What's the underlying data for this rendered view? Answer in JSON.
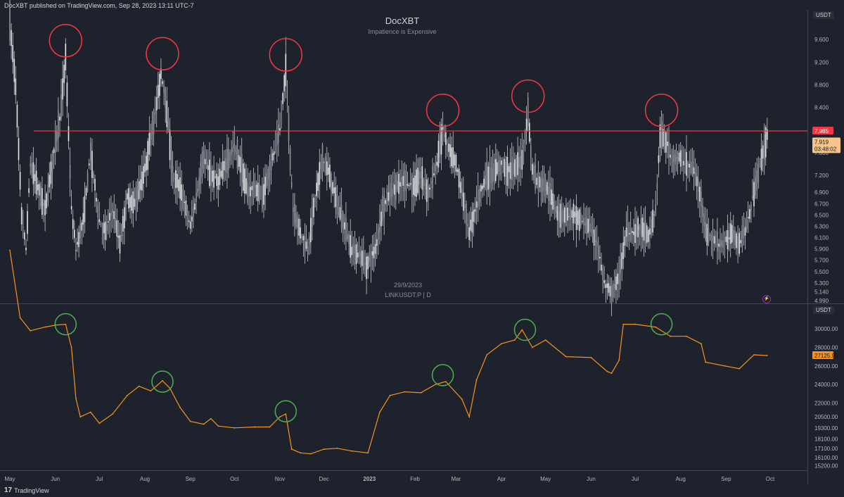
{
  "header": "DocXBT published on TradingView.com, Sep 28, 2023 13:11 UTC-7",
  "footer_brand": "TradingView",
  "chart_title": "DocXBT",
  "chart_subtitle": "Impatience is Expensive",
  "watermark_date": "29/9/2023",
  "watermark_symbol": "LINKUSDT.P | D",
  "colors": {
    "background": "#1e222d",
    "candles": "#c8c9ce",
    "resistance_line": "#f23645",
    "red_circle": "#f23645",
    "green_circle": "#4caf50",
    "btc_line": "#f7931a"
  },
  "chart_data": [
    {
      "type": "candlestick",
      "currency_label": "USDT",
      "y_ticks": [
        "9.600",
        "9.200",
        "8.800",
        "8.400",
        "7.600",
        "7.200",
        "6.900",
        "6.700",
        "6.500",
        "6.300",
        "6.100",
        "5.900",
        "5.700",
        "5.500",
        "5.300",
        "5.140",
        "4.990"
      ],
      "ylim": [
        4.95,
        10.1
      ],
      "x_ticks": [
        "May",
        "Jun",
        "Jul",
        "Aug",
        "Sep",
        "Oct",
        "Nov",
        "Dec",
        "2023",
        "Feb",
        "Mar",
        "Apr",
        "May",
        "Jun",
        "Jul",
        "Aug",
        "Sep",
        "Oct"
      ],
      "resistance_level": 7.985,
      "resistance_label": "7.985",
      "last_price_label": "7.919",
      "countdown_label": "03:48:02",
      "close_path": [
        [
          "2022-05-01",
          9.9
        ],
        [
          "2022-05-05",
          8.8
        ],
        [
          "2022-05-09",
          6.5
        ],
        [
          "2022-05-12",
          5.9
        ],
        [
          "2022-05-15",
          7.4
        ],
        [
          "2022-05-20",
          7.0
        ],
        [
          "2022-05-25",
          6.6
        ],
        [
          "2022-05-31",
          7.6
        ],
        [
          "2022-06-05",
          8.4
        ],
        [
          "2022-06-08",
          9.3
        ],
        [
          "2022-06-12",
          6.6
        ],
        [
          "2022-06-15",
          5.9
        ],
        [
          "2022-06-20",
          6.4
        ],
        [
          "2022-06-25",
          7.6
        ],
        [
          "2022-07-01",
          6.4
        ],
        [
          "2022-07-05",
          6.2
        ],
        [
          "2022-07-10",
          6.6
        ],
        [
          "2022-07-15",
          6.0
        ],
        [
          "2022-07-20",
          6.8
        ],
        [
          "2022-07-25",
          6.7
        ],
        [
          "2022-08-01",
          7.3
        ],
        [
          "2022-08-08",
          8.3
        ],
        [
          "2022-08-12",
          9.0
        ],
        [
          "2022-08-15",
          8.6
        ],
        [
          "2022-08-20",
          7.2
        ],
        [
          "2022-08-25",
          7.0
        ],
        [
          "2022-09-01",
          6.3
        ],
        [
          "2022-09-05",
          6.8
        ],
        [
          "2022-09-10",
          7.5
        ],
        [
          "2022-09-15",
          7.2
        ],
        [
          "2022-09-20",
          7.1
        ],
        [
          "2022-09-25",
          7.4
        ],
        [
          "2022-10-01",
          7.7
        ],
        [
          "2022-10-05",
          7.4
        ],
        [
          "2022-10-10",
          6.9
        ],
        [
          "2022-10-15",
          7.0
        ],
        [
          "2022-10-20",
          6.8
        ],
        [
          "2022-10-25",
          7.3
        ],
        [
          "2022-11-01",
          8.0
        ],
        [
          "2022-11-05",
          9.1
        ],
        [
          "2022-11-08",
          7.5
        ],
        [
          "2022-11-10",
          6.6
        ],
        [
          "2022-11-15",
          6.2
        ],
        [
          "2022-11-20",
          5.9
        ],
        [
          "2022-11-25",
          6.8
        ],
        [
          "2022-11-30",
          7.5
        ],
        [
          "2022-12-05",
          7.2
        ],
        [
          "2022-12-10",
          6.7
        ],
        [
          "2022-12-15",
          6.3
        ],
        [
          "2022-12-20",
          5.9
        ],
        [
          "2022-12-25",
          5.8
        ],
        [
          "2022-12-30",
          5.6
        ],
        [
          "2023-01-05",
          5.9
        ],
        [
          "2023-01-10",
          6.6
        ],
        [
          "2023-01-15",
          6.9
        ],
        [
          "2023-01-20",
          7.0
        ],
        [
          "2023-01-25",
          7.1
        ],
        [
          "2023-01-31",
          7.0
        ],
        [
          "2023-02-05",
          7.2
        ],
        [
          "2023-02-10",
          6.9
        ],
        [
          "2023-02-15",
          7.3
        ],
        [
          "2023-02-20",
          8.0
        ],
        [
          "2023-02-25",
          7.6
        ],
        [
          "2023-03-01",
          7.4
        ],
        [
          "2023-03-05",
          6.9
        ],
        [
          "2023-03-10",
          6.2
        ],
        [
          "2023-03-15",
          6.7
        ],
        [
          "2023-03-20",
          7.1
        ],
        [
          "2023-03-25",
          7.2
        ],
        [
          "2023-04-01",
          7.4
        ],
        [
          "2023-04-05",
          7.3
        ],
        [
          "2023-04-10",
          7.3
        ],
        [
          "2023-04-15",
          7.5
        ],
        [
          "2023-04-19",
          8.3
        ],
        [
          "2023-04-22",
          7.3
        ],
        [
          "2023-04-25",
          7.1
        ],
        [
          "2023-05-01",
          7.0
        ],
        [
          "2023-05-05",
          6.8
        ],
        [
          "2023-05-10",
          6.5
        ],
        [
          "2023-05-15",
          6.5
        ],
        [
          "2023-05-20",
          6.5
        ],
        [
          "2023-05-25",
          6.4
        ],
        [
          "2023-05-31",
          6.3
        ],
        [
          "2023-06-05",
          6.0
        ],
        [
          "2023-06-10",
          5.3
        ],
        [
          "2023-06-15",
          5.1
        ],
        [
          "2023-06-20",
          5.4
        ],
        [
          "2023-06-25",
          6.2
        ],
        [
          "2023-07-01",
          6.2
        ],
        [
          "2023-07-05",
          6.3
        ],
        [
          "2023-07-10",
          6.1
        ],
        [
          "2023-07-15",
          6.6
        ],
        [
          "2023-07-18",
          7.9
        ],
        [
          "2023-07-22",
          7.8
        ],
        [
          "2023-07-26",
          7.5
        ],
        [
          "2023-07-31",
          7.5
        ],
        [
          "2023-08-05",
          7.4
        ],
        [
          "2023-08-10",
          7.3
        ],
        [
          "2023-08-15",
          6.8
        ],
        [
          "2023-08-18",
          6.2
        ],
        [
          "2023-08-22",
          6.1
        ],
        [
          "2023-08-25",
          6.0
        ],
        [
          "2023-08-31",
          6.0
        ],
        [
          "2023-09-05",
          6.2
        ],
        [
          "2023-09-10",
          6.0
        ],
        [
          "2023-09-15",
          6.3
        ],
        [
          "2023-09-20",
          6.9
        ],
        [
          "2023-09-25",
          7.5
        ],
        [
          "2023-09-29",
          7.92
        ]
      ],
      "peak_circles": [
        {
          "date": "2022-06-08",
          "price": 9.58
        },
        {
          "date": "2022-08-13",
          "price": 9.35
        },
        {
          "date": "2022-11-05",
          "price": 9.33
        },
        {
          "date": "2023-02-20",
          "price": 8.35
        },
        {
          "date": "2023-04-19",
          "price": 8.6
        },
        {
          "date": "2023-07-19",
          "price": 8.35
        }
      ]
    },
    {
      "type": "line",
      "currency_label": "USDT",
      "y_ticks": [
        "30000.00",
        "28000.00",
        "26000.00",
        "24000.00",
        "22000.00",
        "20500.00",
        "19300.00",
        "18100.00",
        "17100.00",
        "16100.00",
        "15200.00"
      ],
      "ylim": [
        14800,
        32600
      ],
      "last_value_label": "27125.90",
      "x": [
        "2022-05-01",
        "2022-05-08",
        "2022-05-15",
        "2022-05-25",
        "2022-06-01",
        "2022-06-08",
        "2022-06-12",
        "2022-06-15",
        "2022-06-18",
        "2022-06-25",
        "2022-07-01",
        "2022-07-10",
        "2022-07-20",
        "2022-07-28",
        "2022-08-05",
        "2022-08-13",
        "2022-08-18",
        "2022-08-25",
        "2022-09-01",
        "2022-09-10",
        "2022-09-15",
        "2022-09-20",
        "2022-10-01",
        "2022-10-15",
        "2022-10-25",
        "2022-11-01",
        "2022-11-05",
        "2022-11-09",
        "2022-11-15",
        "2022-11-22",
        "2022-12-01",
        "2022-12-10",
        "2022-12-20",
        "2022-12-31",
        "2023-01-08",
        "2023-01-15",
        "2023-01-25",
        "2023-02-05",
        "2023-02-15",
        "2023-02-22",
        "2023-03-05",
        "2023-03-10",
        "2023-03-15",
        "2023-03-22",
        "2023-04-01",
        "2023-04-10",
        "2023-04-15",
        "2023-04-22",
        "2023-05-01",
        "2023-05-15",
        "2023-06-01",
        "2023-06-12",
        "2023-06-15",
        "2023-06-20",
        "2023-06-23",
        "2023-07-01",
        "2023-07-15",
        "2023-07-25",
        "2023-08-05",
        "2023-08-15",
        "2023-08-18",
        "2023-08-31",
        "2023-09-10",
        "2023-09-20",
        "2023-09-29"
      ],
      "values": [
        38500,
        31200,
        29800,
        30200,
        30400,
        30500,
        28000,
        22500,
        20500,
        21000,
        19800,
        20800,
        22800,
        23800,
        23300,
        24400,
        23600,
        21500,
        20000,
        19700,
        20300,
        19500,
        19300,
        19400,
        19400,
        20500,
        20800,
        17000,
        16600,
        16500,
        17000,
        17100,
        16800,
        16600,
        21000,
        22800,
        23200,
        23100,
        24000,
        24300,
        22400,
        20500,
        24500,
        27200,
        28400,
        28800,
        29900,
        28000,
        28800,
        27000,
        26900,
        25400,
        25200,
        26600,
        30500,
        30500,
        30200,
        29200,
        29200,
        28400,
        26400,
        26000,
        25700,
        27200,
        27126
      ],
      "peak_circles": [
        {
          "date": "2022-06-08",
          "value": 30500
        },
        {
          "date": "2022-08-13",
          "value": 24300
        },
        {
          "date": "2022-11-05",
          "value": 21100
        },
        {
          "date": "2023-02-20",
          "value": 25000
        },
        {
          "date": "2023-04-17",
          "value": 29900
        },
        {
          "date": "2023-07-19",
          "value": 30500
        }
      ]
    }
  ]
}
